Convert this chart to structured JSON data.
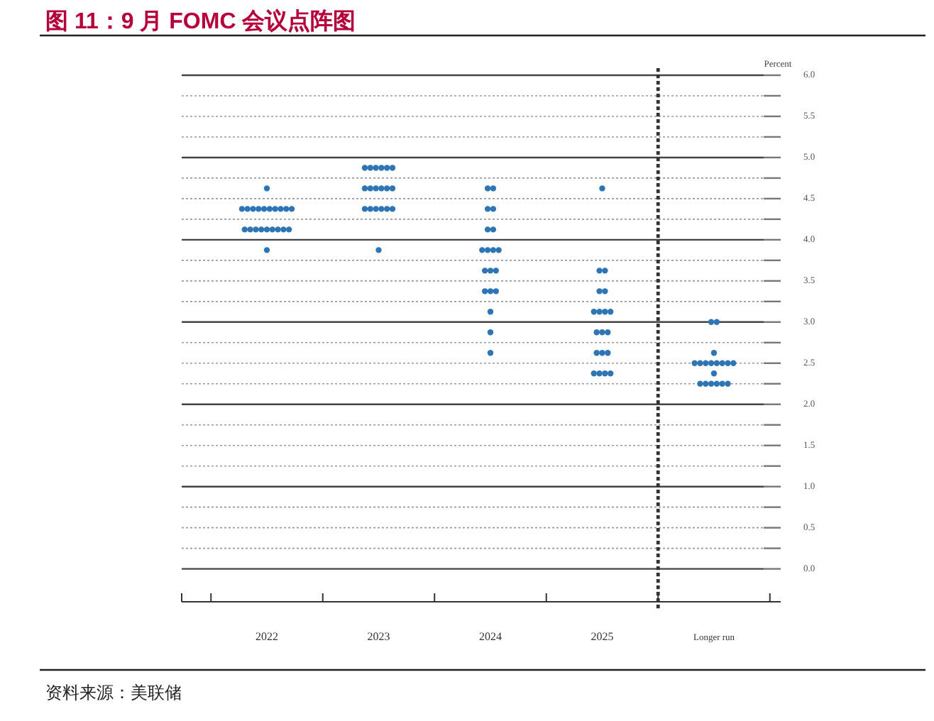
{
  "chart_data": {
    "type": "scatter",
    "title": "图 11：9 月 FOMC 会议点阵图",
    "ylabel": "Percent",
    "categories": [
      "2022",
      "2023",
      "2024",
      "2025",
      "Longer run"
    ],
    "series": [
      {
        "color": "#2e75b6",
        "values": [
          4.625,
          4.875,
          4.625,
          4.625,
          3.0
        ]
      },
      {
        "color": "#2e75b6",
        "values": [
          4.375,
          4.875,
          4.625,
          3.625,
          3.0
        ]
      },
      {
        "color": "#2e75b6",
        "values": [
          4.375,
          4.875,
          4.375,
          3.625,
          2.625
        ]
      },
      {
        "color": "#2e75b6",
        "values": [
          4.375,
          4.875,
          4.375,
          3.375,
          2.5
        ]
      },
      {
        "color": "#2e75b6",
        "values": [
          4.375,
          4.875,
          4.125,
          3.375,
          2.5
        ]
      },
      {
        "color": "#2e75b6",
        "values": [
          4.375,
          4.875,
          4.125,
          3.125,
          2.5
        ]
      },
      {
        "color": "#2e75b6",
        "values": [
          4.375,
          4.625,
          3.875,
          3.125,
          2.5
        ]
      },
      {
        "color": "#2e75b6",
        "values": [
          4.375,
          4.625,
          3.875,
          3.125,
          2.5
        ]
      },
      {
        "color": "#2e75b6",
        "values": [
          4.375,
          4.625,
          3.875,
          3.125,
          2.5
        ]
      },
      {
        "color": "#2e75b6",
        "values": [
          4.375,
          4.625,
          3.875,
          2.875,
          2.5
        ]
      },
      {
        "color": "#2e75b6",
        "values": [
          4.375,
          4.625,
          3.625,
          2.875,
          2.5
        ]
      },
      {
        "color": "#2e75b6",
        "values": [
          4.125,
          4.625,
          3.625,
          2.875,
          2.375
        ]
      },
      {
        "color": "#2e75b6",
        "values": [
          4.125,
          4.375,
          3.625,
          2.625,
          2.25
        ]
      },
      {
        "color": "#2e75b6",
        "values": [
          4.125,
          4.375,
          3.375,
          2.625,
          2.25
        ]
      },
      {
        "color": "#2e75b6",
        "values": [
          4.125,
          4.375,
          3.375,
          2.625,
          2.25
        ]
      },
      {
        "color": "#2e75b6",
        "values": [
          4.125,
          4.375,
          3.375,
          2.375,
          2.25
        ]
      },
      {
        "color": "#2e75b6",
        "values": [
          4.125,
          4.375,
          3.125,
          2.375,
          2.25
        ]
      },
      {
        "color": "#2e75b6",
        "values": [
          4.125,
          4.375,
          2.875,
          2.375,
          2.25
        ]
      },
      {
        "color": "#2e75b6",
        "values": [
          4.125,
          3.875,
          2.625,
          2.375,
          null
        ]
      },
      {
        "color": "#2e75b6",
        "values": [
          4.125,
          null,
          null,
          null,
          null
        ]
      },
      {
        "color": "#2e75b6",
        "values": [
          3.875,
          null,
          null,
          null,
          null
        ]
      }
    ],
    "ylim": [
      -0.4,
      6
    ],
    "yticks": [
      {
        "value": 0,
        "label": "0.0"
      },
      {
        "value": 0.5,
        "label": "0.5"
      },
      {
        "value": 1,
        "label": "1.0"
      },
      {
        "value": 1.5,
        "label": "1.5"
      },
      {
        "value": 2,
        "label": "2.0"
      },
      {
        "value": 2.5,
        "label": "2.5"
      },
      {
        "value": 3,
        "label": "3.0"
      },
      {
        "value": 3.5,
        "label": "3.5"
      },
      {
        "value": 4,
        "label": "4.0"
      },
      {
        "value": 4.5,
        "label": "4.5"
      },
      {
        "value": 5,
        "label": "5.0"
      },
      {
        "value": 5.5,
        "label": "5.5"
      },
      {
        "value": 6,
        "label": "6.0"
      }
    ],
    "grid": "y",
    "marker": "circle",
    "annotations": [
      "资料来源：美联储"
    ]
  }
}
